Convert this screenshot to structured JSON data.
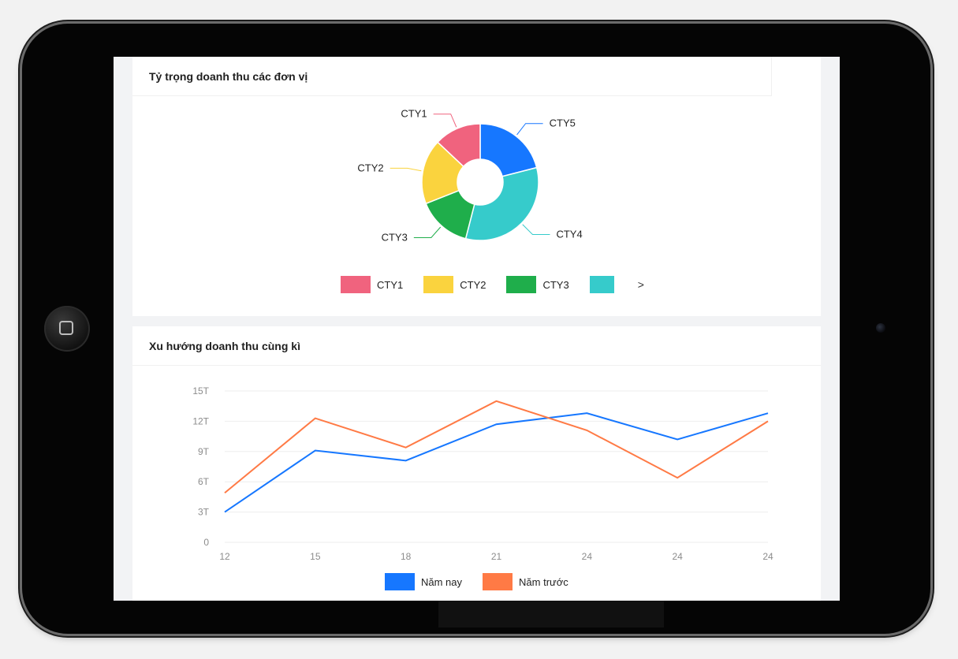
{
  "pie_card": {
    "title": "Tỷ trọng doanh thu các đơn vị",
    "next_label": ">"
  },
  "line_card": {
    "title": "Xu hướng doanh thu cùng kì"
  },
  "chart_data": [
    {
      "type": "pie",
      "style": "donut",
      "categories": [
        "CTY1",
        "CTY2",
        "CTY3",
        "CTY4",
        "CTY5"
      ],
      "values": [
        13,
        18,
        15,
        33,
        21
      ],
      "colors": [
        "#f0637e",
        "#fad33e",
        "#1fae4b",
        "#36cbcb",
        "#1677ff"
      ],
      "legend_visible": [
        "CTY1",
        "CTY2",
        "CTY3",
        "CTY4"
      ],
      "legend_position": "bottom"
    },
    {
      "type": "line",
      "x": [
        "12",
        "15",
        "18",
        "21",
        "24",
        "24",
        "24"
      ],
      "y_ticks": [
        "0",
        "3T",
        "6T",
        "9T",
        "12T",
        "15T"
      ],
      "ylim": [
        0,
        15
      ],
      "grid": true,
      "legend_position": "bottom",
      "series": [
        {
          "name": "Năm nay",
          "color": "#1677ff",
          "values": [
            3.0,
            9.1,
            8.1,
            11.7,
            12.8,
            10.2,
            12.8
          ]
        },
        {
          "name": "Năm trước",
          "color": "#ff7a45",
          "values": [
            4.9,
            12.3,
            9.4,
            14.0,
            11.1,
            6.4,
            12.0
          ]
        }
      ]
    }
  ]
}
